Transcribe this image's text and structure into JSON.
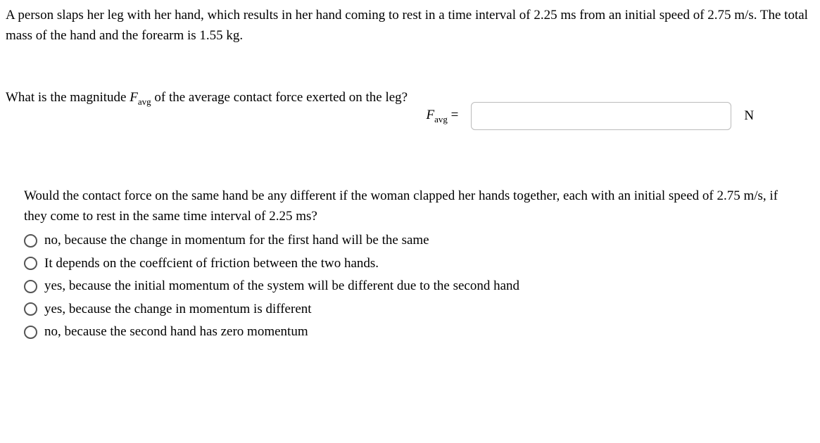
{
  "problem_statement": "A person slaps her leg with her hand, which results in her hand coming to rest in a time interval of 2.25 ms from an initial speed of 2.75 m/s. The total mass of the hand and the forearm is 1.55 kg.",
  "question1": {
    "prefix": "What is the magnitude ",
    "var_main": "F",
    "var_sub": "avg",
    "suffix": " of the average contact force exerted on the leg?"
  },
  "answer": {
    "label_main": "F",
    "label_sub": "avg",
    "equals": " =",
    "value": "",
    "unit": "N"
  },
  "mc": {
    "question": "Would the contact force on the same hand be any different if the woman clapped her hands together, each with an initial speed of 2.75 m/s, if they come to rest in the same time interval of 2.25 ms?",
    "options": [
      "no, because the change in momentum for the first hand will be the same",
      "It depends on the coeffcient of friction between the two hands.",
      "yes, because the initial momentum of the system will be different due to the second hand",
      "yes, because the change in momentum is different",
      "no, because the second hand has zero momentum"
    ]
  }
}
